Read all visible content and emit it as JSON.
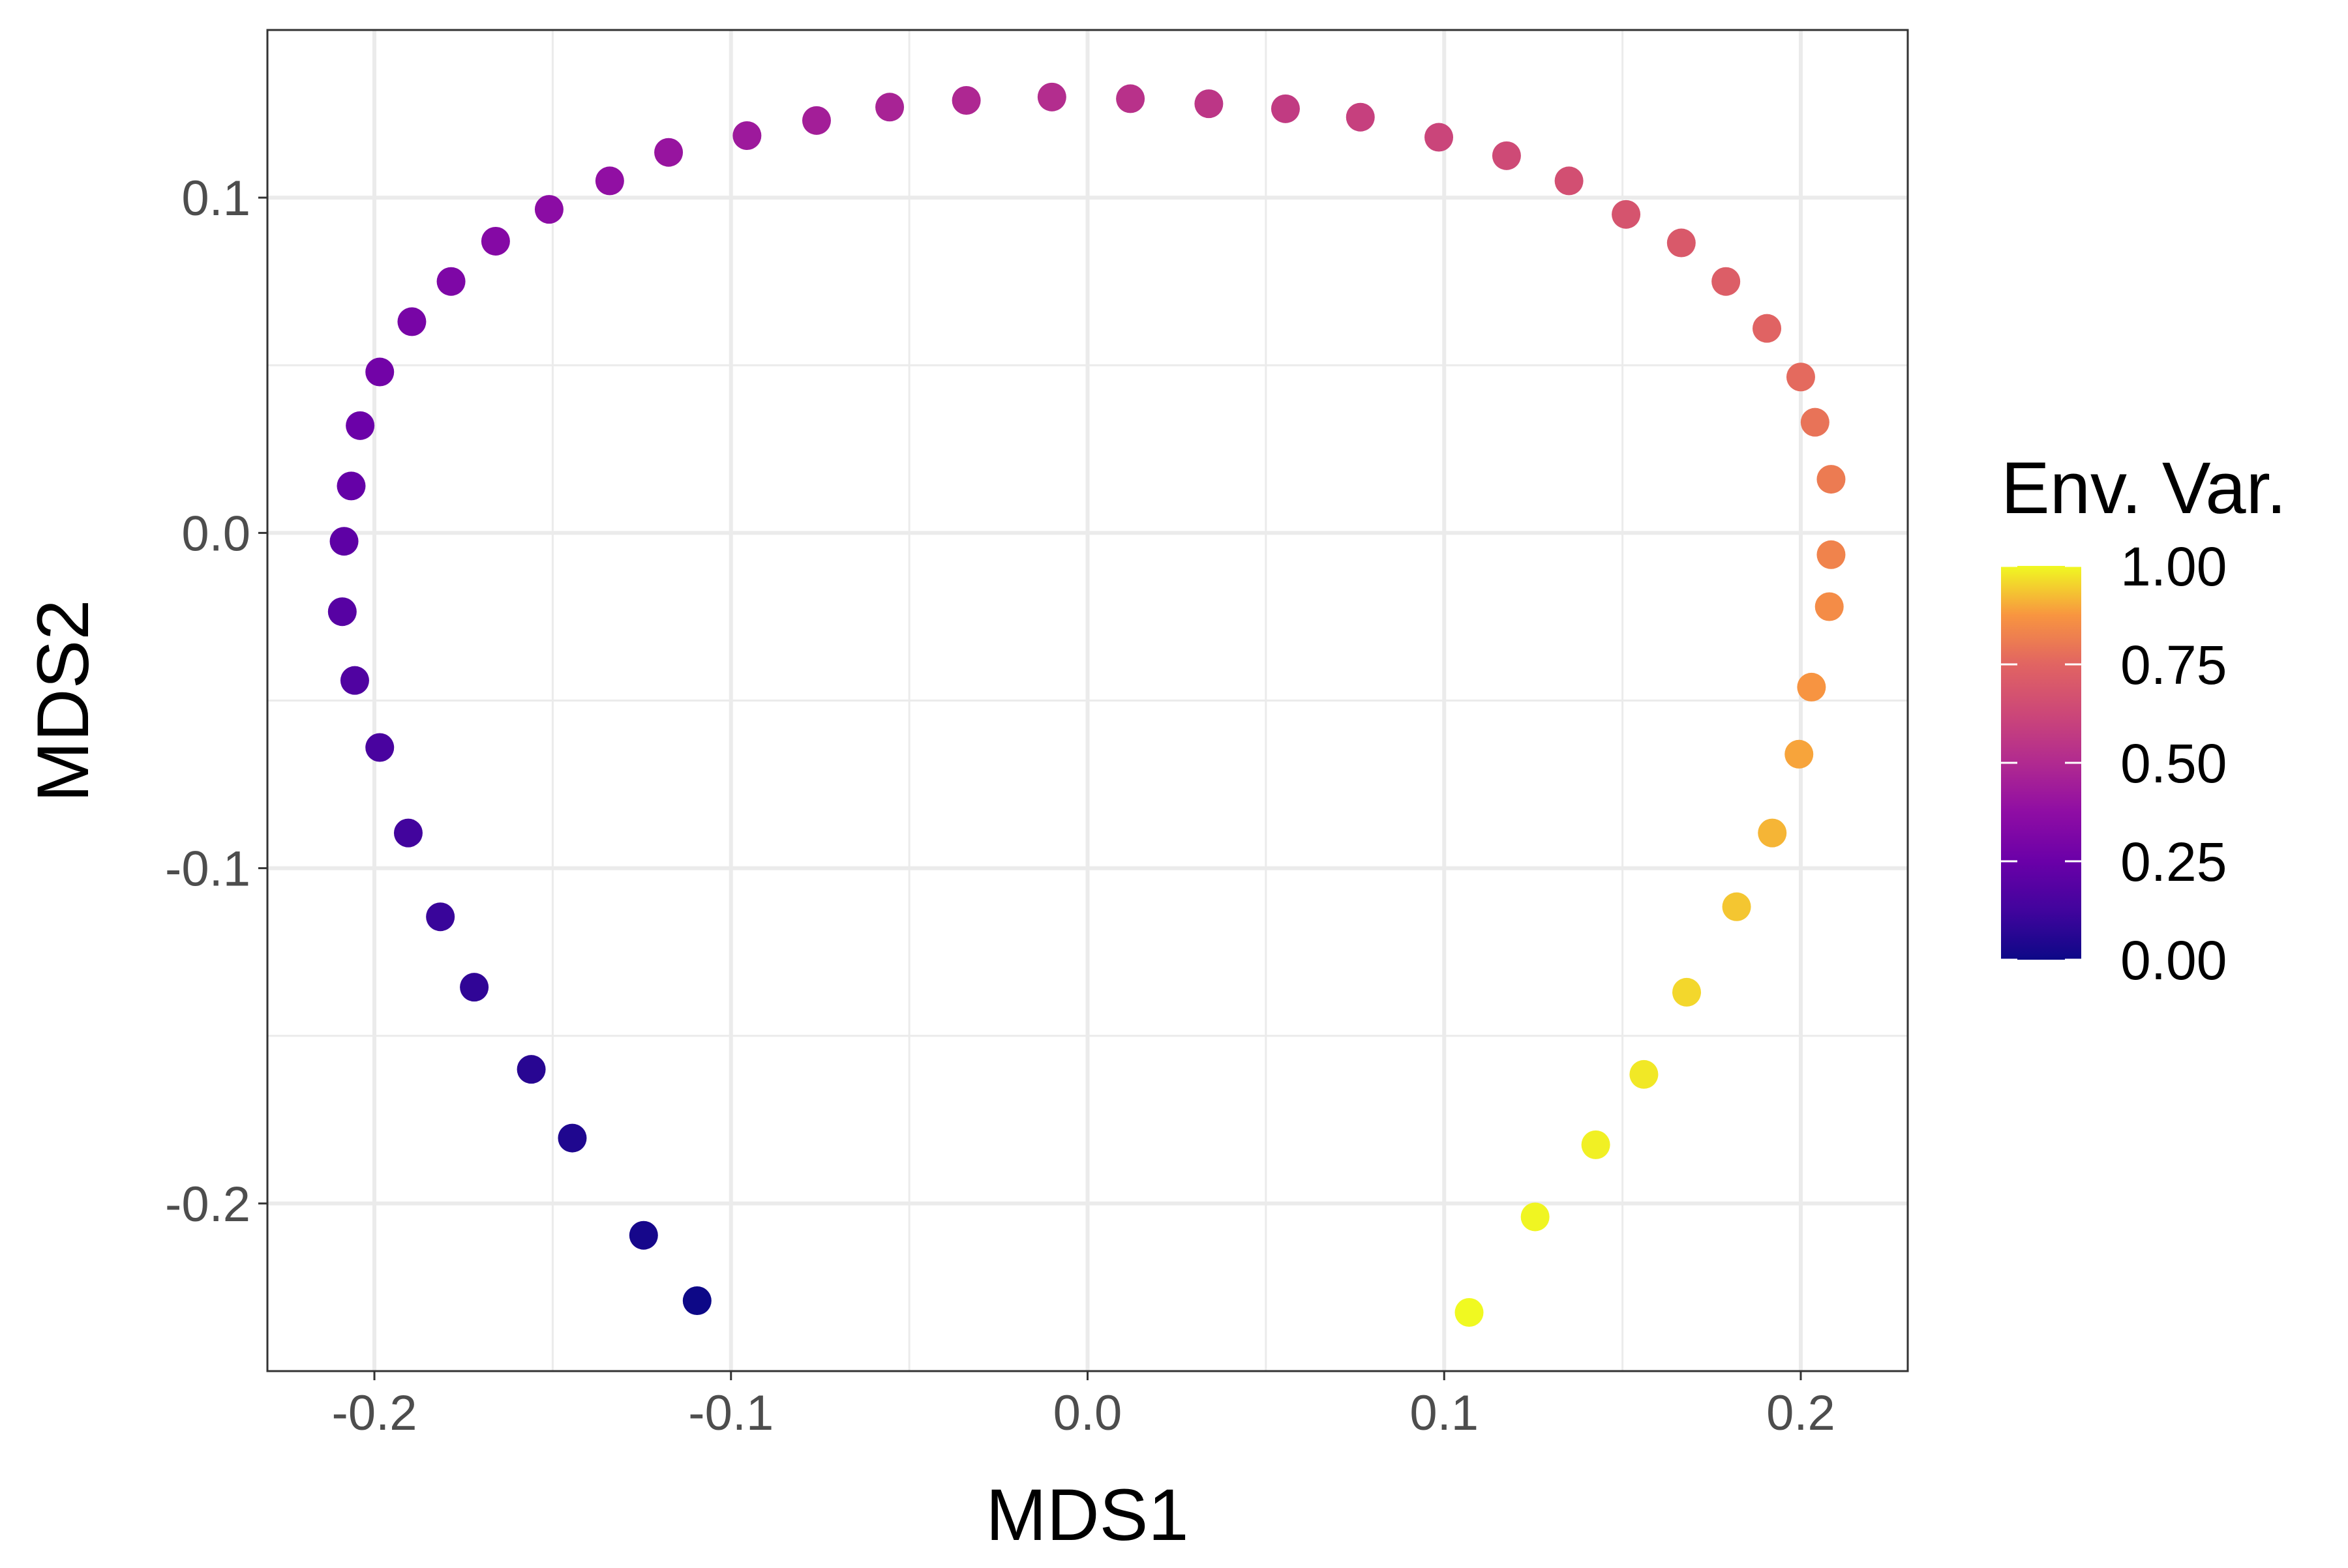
{
  "chart_data": {
    "type": "scatter",
    "xlabel": "MDS1",
    "ylabel": "MDS2",
    "xlim": [
      -0.23,
      0.23
    ],
    "ylim": [
      -0.25,
      0.15
    ],
    "x_ticks": [
      -0.2,
      -0.1,
      0.0,
      0.1,
      0.2
    ],
    "x_tick_labels": [
      "-0.2",
      "-0.1",
      "0.0",
      "0.1",
      "0.2"
    ],
    "y_ticks": [
      -0.2,
      -0.1,
      0.0,
      0.1
    ],
    "y_tick_labels": [
      "-0.2",
      "-0.1",
      "0.0",
      "0.1"
    ],
    "grid": true,
    "color_variable": "Env. Var.",
    "color_scale": "plasma",
    "color_range": [
      0,
      1
    ],
    "legend": {
      "title": "Env. Var.",
      "position": "right",
      "ticks": [
        1.0,
        0.75,
        0.5,
        0.25,
        0.0
      ],
      "tick_labels": [
        "1.00",
        "0.75",
        "0.50",
        "0.25",
        "0.00"
      ]
    },
    "points": [
      {
        "x": -0.1095,
        "y": -0.229,
        "value": 0.0
      },
      {
        "x": -0.1245,
        "y": -0.2095,
        "value": 0.021
      },
      {
        "x": -0.1445,
        "y": -0.1805,
        "value": 0.043
      },
      {
        "x": -0.156,
        "y": -0.16,
        "value": 0.064
      },
      {
        "x": -0.172,
        "y": -0.1355,
        "value": 0.085
      },
      {
        "x": -0.1815,
        "y": -0.1145,
        "value": 0.106
      },
      {
        "x": -0.1905,
        "y": -0.0895,
        "value": 0.128
      },
      {
        "x": -0.1985,
        "y": -0.064,
        "value": 0.149
      },
      {
        "x": -0.2055,
        "y": -0.044,
        "value": 0.17
      },
      {
        "x": -0.209,
        "y": -0.0235,
        "value": 0.191
      },
      {
        "x": -0.2085,
        "y": -0.0025,
        "value": 0.213
      },
      {
        "x": -0.2065,
        "y": 0.014,
        "value": 0.234
      },
      {
        "x": -0.204,
        "y": 0.032,
        "value": 0.255
      },
      {
        "x": -0.1985,
        "y": 0.048,
        "value": 0.277
      },
      {
        "x": -0.1895,
        "y": 0.063,
        "value": 0.298
      },
      {
        "x": -0.1785,
        "y": 0.075,
        "value": 0.319
      },
      {
        "x": -0.166,
        "y": 0.087,
        "value": 0.34
      },
      {
        "x": -0.151,
        "y": 0.0965,
        "value": 0.362
      },
      {
        "x": -0.134,
        "y": 0.105,
        "value": 0.383
      },
      {
        "x": -0.1175,
        "y": 0.1135,
        "value": 0.404
      },
      {
        "x": -0.0955,
        "y": 0.1185,
        "value": 0.426
      },
      {
        "x": -0.076,
        "y": 0.123,
        "value": 0.447
      },
      {
        "x": -0.0555,
        "y": 0.127,
        "value": 0.468
      },
      {
        "x": -0.034,
        "y": 0.129,
        "value": 0.489
      },
      {
        "x": -0.01,
        "y": 0.13,
        "value": 0.511
      },
      {
        "x": 0.012,
        "y": 0.1295,
        "value": 0.532
      },
      {
        "x": 0.034,
        "y": 0.128,
        "value": 0.553
      },
      {
        "x": 0.0555,
        "y": 0.1265,
        "value": 0.574
      },
      {
        "x": 0.0765,
        "y": 0.124,
        "value": 0.596
      },
      {
        "x": 0.0985,
        "y": 0.118,
        "value": 0.617
      },
      {
        "x": 0.1175,
        "y": 0.1125,
        "value": 0.638
      },
      {
        "x": 0.135,
        "y": 0.105,
        "value": 0.66
      },
      {
        "x": 0.151,
        "y": 0.095,
        "value": 0.681
      },
      {
        "x": 0.1665,
        "y": 0.0865,
        "value": 0.702
      },
      {
        "x": 0.179,
        "y": 0.075,
        "value": 0.723
      },
      {
        "x": 0.1905,
        "y": 0.061,
        "value": 0.745
      },
      {
        "x": 0.2,
        "y": 0.0465,
        "value": 0.766
      },
      {
        "x": 0.204,
        "y": 0.033,
        "value": 0.787
      },
      {
        "x": 0.2085,
        "y": 0.016,
        "value": 0.809
      },
      {
        "x": 0.2085,
        "y": -0.0065,
        "value": 0.83
      },
      {
        "x": 0.208,
        "y": -0.022,
        "value": 0.851
      },
      {
        "x": 0.203,
        "y": -0.046,
        "value": 0.872
      },
      {
        "x": 0.1995,
        "y": -0.066,
        "value": 0.894
      },
      {
        "x": 0.192,
        "y": -0.0895,
        "value": 0.915
      },
      {
        "x": 0.182,
        "y": -0.1115,
        "value": 0.936
      },
      {
        "x": 0.168,
        "y": -0.137,
        "value": 0.957
      },
      {
        "x": 0.156,
        "y": -0.1615,
        "value": 0.979
      },
      {
        "x": 0.1425,
        "y": -0.1825,
        "value": 0.989
      },
      {
        "x": 0.1255,
        "y": -0.204,
        "value": 0.995
      },
      {
        "x": 0.107,
        "y": -0.2325,
        "value": 1.0
      }
    ]
  }
}
